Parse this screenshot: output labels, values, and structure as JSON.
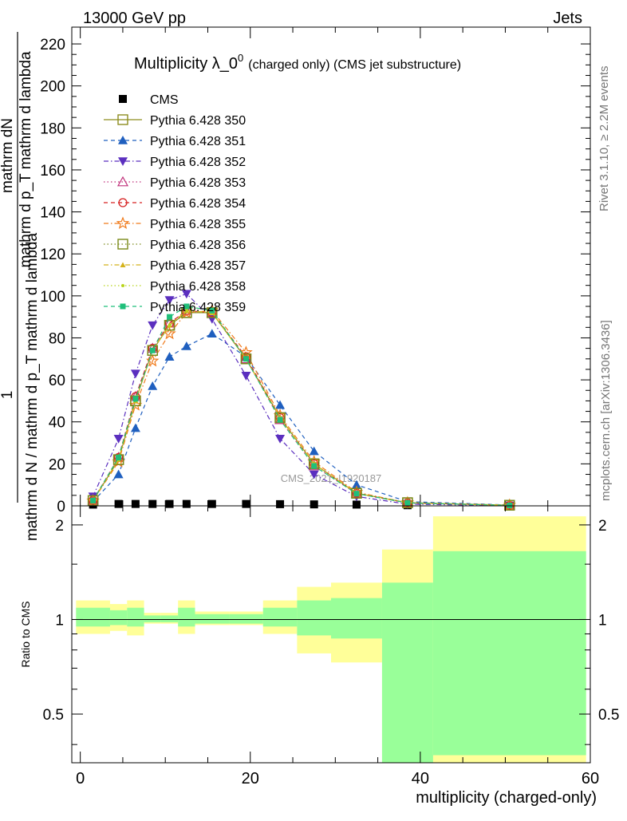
{
  "header": {
    "left": "13000 GeV pp",
    "right": "Jets"
  },
  "side_labels": {
    "rivet": "Rivet 3.1.10, ≥ 2.2M events",
    "mcplots": "mcplots.cern.ch [arXiv:1306.3436]"
  },
  "watermark": "CMS_2021_I1920187",
  "chart_data": [
    {
      "type": "line",
      "title_main": "Multiplicity λ_0",
      "title_sup": "0",
      "title_suffix": "(charged only) (CMS jet substructure)",
      "ylabel_top_num": "mathrm dN",
      "ylabel_top_den": "mathrm d p_T mathrm d lambda",
      "ylabel_left_num": "1",
      "ylabel_left_den": "mathrm d N / mathrm d p_T mathrm d lambda",
      "xlim": [
        -1,
        60
      ],
      "ylim": [
        0,
        228
      ],
      "yticks": [
        0,
        20,
        40,
        60,
        80,
        100,
        120,
        140,
        160,
        180,
        200,
        220
      ],
      "legend_position": "top-left",
      "x": [
        1.5,
        4.5,
        6.5,
        8.5,
        10.5,
        12.5,
        15.5,
        19.5,
        23.5,
        27.5,
        32.5,
        38.5,
        50.5
      ],
      "series": [
        {
          "name": "CMS",
          "color": "#000000",
          "marker": "square-filled",
          "dash": "none",
          "values": [
            0.6,
            0.9,
            0.9,
            0.9,
            0.9,
            0.9,
            0.9,
            0.9,
            0.8,
            0.7,
            0.6,
            0.3,
            0.1
          ]
        },
        {
          "name": "Pythia 6.428 350",
          "color": "#8d8d1f",
          "marker": "square-open",
          "dash": "solid",
          "values": [
            2.5,
            22,
            50,
            74,
            86,
            92,
            92,
            70,
            42,
            20,
            6,
            1.5,
            0.3
          ]
        },
        {
          "name": "Pythia 6.428 351",
          "color": "#1f5fbf",
          "marker": "triangle-up-filled",
          "dash": "dashed",
          "values": [
            2.0,
            15,
            37,
            57,
            71,
            76,
            82,
            71,
            48,
            26,
            10,
            2.0,
            0.4
          ]
        },
        {
          "name": "Pythia 6.428 352",
          "color": "#5b2fbf",
          "marker": "triangle-down-filled",
          "dash": "dashdot",
          "values": [
            4.5,
            32,
            63,
            86,
            98,
            101,
            89,
            62,
            32,
            15,
            4.5,
            0.8,
            0.1
          ]
        },
        {
          "name": "Pythia 6.428 353",
          "color": "#c0307a",
          "marker": "triangle-up-open",
          "dash": "dotted",
          "values": [
            2.6,
            23,
            52,
            75,
            87,
            93,
            92,
            70,
            41,
            19,
            5.8,
            1.3,
            0.2
          ]
        },
        {
          "name": "Pythia 6.428 354",
          "color": "#d62020",
          "marker": "circle-open",
          "dash": "dashed",
          "values": [
            2.6,
            23,
            52,
            75,
            87,
            93,
            92,
            71,
            42,
            20,
            6,
            1.4,
            0.2
          ]
        },
        {
          "name": "Pythia 6.428 355",
          "color": "#f07a1a",
          "marker": "star-open",
          "dash": "dashdot",
          "values": [
            2.4,
            21,
            48,
            69,
            82,
            92,
            93,
            73,
            43,
            21,
            6.5,
            1.5,
            0.3
          ]
        },
        {
          "name": "Pythia 6.428 356",
          "color": "#7a8a1a",
          "marker": "square-open",
          "dash": "dotted",
          "values": [
            2.5,
            22,
            50,
            74,
            86,
            92,
            92,
            70,
            42,
            20,
            6,
            1.5,
            0.3
          ]
        },
        {
          "name": "Pythia 6.428 357",
          "color": "#d4b21a",
          "marker": "triangle-up-small",
          "dash": "dashdot",
          "values": [
            2.5,
            22,
            50,
            74,
            86,
            93,
            92,
            70,
            42,
            20,
            6,
            1.5,
            0.3
          ]
        },
        {
          "name": "Pythia 6.428 358",
          "color": "#b8d41a",
          "marker": "dot",
          "dash": "dotted",
          "values": [
            2.5,
            22,
            50,
            74,
            86,
            93,
            92,
            70,
            42,
            20,
            6,
            1.5,
            0.3
          ]
        },
        {
          "name": "Pythia 6.428 359",
          "color": "#1fbf7a",
          "marker": "square-filled-small",
          "dash": "dashed",
          "values": [
            2.5,
            23,
            51,
            74,
            90,
            95,
            93,
            70,
            41,
            19,
            5.8,
            1.4,
            0.2
          ]
        }
      ]
    },
    {
      "type": "area",
      "ylabel": "Ratio to CMS",
      "xlabel": "multiplicity (charged-only)",
      "xlim": [
        -1,
        60
      ],
      "ylim": [
        0.35,
        2.3
      ],
      "scale": "log",
      "yticks": [
        0.5,
        1,
        2
      ],
      "xticks": [
        0,
        20,
        40,
        60
      ],
      "reference_line": 1,
      "bins": [
        {
          "x0": -0.5,
          "x1": 3.5,
          "yellow": [
            0.9,
            1.15
          ],
          "green": [
            0.95,
            1.09
          ]
        },
        {
          "x0": 3.5,
          "x1": 5.5,
          "yellow": [
            0.92,
            1.12
          ],
          "green": [
            0.96,
            1.07
          ]
        },
        {
          "x0": 5.5,
          "x1": 7.5,
          "yellow": [
            0.89,
            1.15
          ],
          "green": [
            0.95,
            1.09
          ]
        },
        {
          "x0": 7.5,
          "x1": 9.5,
          "yellow": [
            0.97,
            1.05
          ],
          "green": [
            0.98,
            1.03
          ]
        },
        {
          "x0": 9.5,
          "x1": 11.5,
          "yellow": [
            0.97,
            1.05
          ],
          "green": [
            0.98,
            1.03
          ]
        },
        {
          "x0": 11.5,
          "x1": 13.5,
          "yellow": [
            0.9,
            1.15
          ],
          "green": [
            0.95,
            1.09
          ]
        },
        {
          "x0": 13.5,
          "x1": 17.5,
          "yellow": [
            0.96,
            1.06
          ],
          "green": [
            0.97,
            1.04
          ]
        },
        {
          "x0": 17.5,
          "x1": 21.5,
          "yellow": [
            0.96,
            1.06
          ],
          "green": [
            0.97,
            1.04
          ]
        },
        {
          "x0": 21.5,
          "x1": 25.5,
          "yellow": [
            0.9,
            1.15
          ],
          "green": [
            0.95,
            1.09
          ]
        },
        {
          "x0": 25.5,
          "x1": 29.5,
          "yellow": [
            0.78,
            1.27
          ],
          "green": [
            0.89,
            1.15
          ]
        },
        {
          "x0": 29.5,
          "x1": 35.5,
          "yellow": [
            0.73,
            1.31
          ],
          "green": [
            0.87,
            1.17
          ]
        },
        {
          "x0": 35.5,
          "x1": 41.5,
          "yellow": [
            0.35,
            1.67
          ],
          "green": [
            0.35,
            1.31
          ]
        },
        {
          "x0": 41.5,
          "x1": 59.5,
          "yellow": [
            0.35,
            2.13
          ],
          "green": [
            0.37,
            1.65
          ]
        }
      ]
    }
  ]
}
